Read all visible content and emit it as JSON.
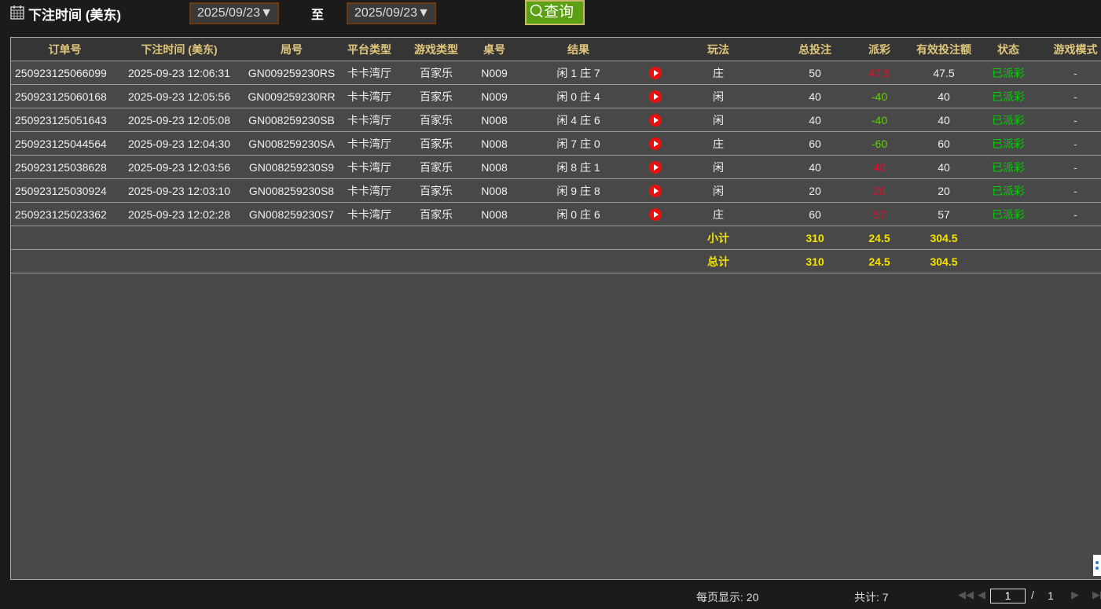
{
  "filter": {
    "label": "下注时间 (美东)",
    "start_date": "2025/09/23▼",
    "to_label": "至",
    "end_date": "2025/09/23▼",
    "query_label": "查询"
  },
  "table": {
    "headers": [
      "订单号",
      "下注时间 (美东)",
      "局号",
      "平台类型",
      "游戏类型",
      "桌号",
      "结果",
      "",
      "玩法",
      "总投注",
      "派彩",
      "有效投注额",
      "状态",
      "游戏模式"
    ],
    "rows": [
      {
        "order": "250923125066099",
        "time": "2025-09-23 12:06:31",
        "round": "GN009259230RS",
        "platform": "卡卡湾厅",
        "game": "百家乐",
        "table": "N009",
        "result": "闲 1 庄 7",
        "play": "庄",
        "bet": "50",
        "payout": "47.5",
        "valid": "47.5",
        "status": "已派彩",
        "mode": "-"
      },
      {
        "order": "250923125060168",
        "time": "2025-09-23 12:05:56",
        "round": "GN009259230RR",
        "platform": "卡卡湾厅",
        "game": "百家乐",
        "table": "N009",
        "result": "闲 0 庄 4",
        "play": "闲",
        "bet": "40",
        "payout": "-40",
        "valid": "40",
        "status": "已派彩",
        "mode": "-"
      },
      {
        "order": "250923125051643",
        "time": "2025-09-23 12:05:08",
        "round": "GN008259230SB",
        "platform": "卡卡湾厅",
        "game": "百家乐",
        "table": "N008",
        "result": "闲 4 庄 6",
        "play": "闲",
        "bet": "40",
        "payout": "-40",
        "valid": "40",
        "status": "已派彩",
        "mode": "-"
      },
      {
        "order": "250923125044564",
        "time": "2025-09-23 12:04:30",
        "round": "GN008259230SA",
        "platform": "卡卡湾厅",
        "game": "百家乐",
        "table": "N008",
        "result": "闲 7 庄 0",
        "play": "庄",
        "bet": "60",
        "payout": "-60",
        "valid": "60",
        "status": "已派彩",
        "mode": "-"
      },
      {
        "order": "250923125038628",
        "time": "2025-09-23 12:03:56",
        "round": "GN008259230S9",
        "platform": "卡卡湾厅",
        "game": "百家乐",
        "table": "N008",
        "result": "闲 8 庄 1",
        "play": "闲",
        "bet": "40",
        "payout": "40",
        "valid": "40",
        "status": "已派彩",
        "mode": "-"
      },
      {
        "order": "250923125030924",
        "time": "2025-09-23 12:03:10",
        "round": "GN008259230S8",
        "platform": "卡卡湾厅",
        "game": "百家乐",
        "table": "N008",
        "result": "闲 9 庄 8",
        "play": "闲",
        "bet": "20",
        "payout": "20",
        "valid": "20",
        "status": "已派彩",
        "mode": "-"
      },
      {
        "order": "250923125023362",
        "time": "2025-09-23 12:02:28",
        "round": "GN008259230S7",
        "platform": "卡卡湾厅",
        "game": "百家乐",
        "table": "N008",
        "result": "闲 0 庄 6",
        "play": "庄",
        "bet": "60",
        "payout": "57",
        "valid": "57",
        "status": "已派彩",
        "mode": "-"
      }
    ],
    "subtotal": {
      "label": "小计",
      "bet": "310",
      "payout": "24.5",
      "valid": "304.5"
    },
    "total": {
      "label": "总计",
      "bet": "310",
      "payout": "24.5",
      "valid": "304.5"
    }
  },
  "colors": {
    "positive_payout": "#e0102f",
    "negative_payout": "#5fd400",
    "status": "#00d000",
    "header_text": "#e0c77c",
    "summary_text": "#f5e400",
    "query_button": "#5aa012"
  },
  "footer": {
    "per_page": "每页显示: 20",
    "total": "共计: 7",
    "current_page": "1",
    "slash": "/",
    "total_pages": "1"
  }
}
